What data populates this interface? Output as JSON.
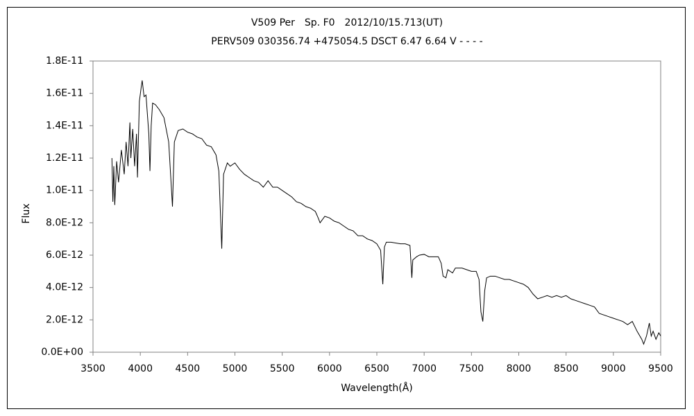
{
  "chart_data": {
    "type": "line",
    "title": "V509 Per　Sp. F0　2012/10/15.713(UT)",
    "subtitle": "PERV509 030356.74 +475054.5 DSCT 6.47 6.64 V - - - -",
    "x_label": "Wavelength(Å)",
    "y_label": "Flux",
    "color": "#000000",
    "xlim": [
      3500,
      9500
    ],
    "xticks": [
      3500,
      4000,
      4500,
      5000,
      5500,
      6000,
      6500,
      7000,
      7500,
      8000,
      8500,
      9000,
      9500
    ],
    "ylim": [
      0,
      1.8e-11
    ],
    "yticks": [
      {
        "value": 0,
        "label": "0.0E+00"
      },
      {
        "value": 2e-12,
        "label": "2.0E-12"
      },
      {
        "value": 4e-12,
        "label": "4.0E-12"
      },
      {
        "value": 6e-12,
        "label": "6.0E-12"
      },
      {
        "value": 8e-12,
        "label": "8.0E-12"
      },
      {
        "value": 1e-11,
        "label": "1.0E-11"
      },
      {
        "value": 1.2e-11,
        "label": "1.2E-11"
      },
      {
        "value": 1.4e-11,
        "label": "1.4E-11"
      },
      {
        "value": 1.6e-11,
        "label": "1.6E-11"
      },
      {
        "value": 1.8e-11,
        "label": "1.8E-11"
      }
    ],
    "x": [
      3700,
      3710,
      3720,
      3730,
      3750,
      3770,
      3800,
      3830,
      3850,
      3870,
      3890,
      3900,
      3920,
      3940,
      3960,
      3970,
      3990,
      4010,
      4020,
      4040,
      4060,
      4090,
      4102,
      4115,
      4130,
      4160,
      4200,
      4250,
      4300,
      4340,
      4360,
      4400,
      4450,
      4500,
      4550,
      4600,
      4650,
      4700,
      4750,
      4800,
      4830,
      4861,
      4880,
      4920,
      4950,
      5000,
      5050,
      5100,
      5150,
      5200,
      5250,
      5300,
      5350,
      5400,
      5450,
      5500,
      5550,
      5600,
      5650,
      5700,
      5750,
      5800,
      5850,
      5880,
      5900,
      5950,
      6000,
      6050,
      6100,
      6150,
      6200,
      6250,
      6300,
      6350,
      6400,
      6450,
      6500,
      6540,
      6563,
      6580,
      6600,
      6650,
      6700,
      6750,
      6800,
      6850,
      6870,
      6880,
      6920,
      6950,
      7000,
      7050,
      7100,
      7150,
      7180,
      7200,
      7230,
      7250,
      7300,
      7330,
      7400,
      7450,
      7500,
      7550,
      7580,
      7600,
      7620,
      7640,
      7660,
      7700,
      7750,
      7800,
      7850,
      7900,
      7950,
      8000,
      8050,
      8100,
      8150,
      8200,
      8250,
      8300,
      8350,
      8400,
      8450,
      8500,
      8550,
      8600,
      8650,
      8700,
      8750,
      8800,
      8850,
      8900,
      8950,
      9000,
      9050,
      9100,
      9150,
      9200,
      9250,
      9300,
      9320,
      9350,
      9380,
      9400,
      9420,
      9450,
      9480,
      9500
    ],
    "values": [
      1.2e-11,
      9.3e-12,
      1.15e-11,
      9.1e-12,
      1.18e-11,
      1.05e-11,
      1.25e-11,
      1.1e-11,
      1.3e-11,
      1.15e-11,
      1.42e-11,
      1.2e-11,
      1.38e-11,
      1.15e-11,
      1.35e-11,
      1.08e-11,
      1.55e-11,
      1.64e-11,
      1.68e-11,
      1.58e-11,
      1.59e-11,
      1.35e-11,
      1.12e-11,
      1.4e-11,
      1.54e-11,
      1.53e-11,
      1.5e-11,
      1.45e-11,
      1.3e-11,
      9e-12,
      1.3e-11,
      1.37e-11,
      1.38e-11,
      1.36e-11,
      1.35e-11,
      1.33e-11,
      1.32e-11,
      1.28e-11,
      1.27e-11,
      1.22e-11,
      1.12e-11,
      6.4e-12,
      1.1e-11,
      1.17e-11,
      1.15e-11,
      1.17e-11,
      1.13e-11,
      1.1e-11,
      1.08e-11,
      1.06e-11,
      1.05e-11,
      1.02e-11,
      1.06e-11,
      1.02e-11,
      1.02e-11,
      1e-11,
      9.8e-12,
      9.6e-12,
      9.3e-12,
      9.2e-12,
      9e-12,
      8.9e-12,
      8.7e-12,
      8.3e-12,
      8e-12,
      8.4e-12,
      8.3e-12,
      8.1e-12,
      8e-12,
      7.8e-12,
      7.6e-12,
      7.5e-12,
      7.2e-12,
      7.2e-12,
      7e-12,
      6.9e-12,
      6.7e-12,
      6.3e-12,
      4.2e-12,
      6.5e-12,
      6.8e-12,
      6.8e-12,
      6.75e-12,
      6.7e-12,
      6.7e-12,
      6.6e-12,
      4.6e-12,
      5.7e-12,
      5.9e-12,
      6e-12,
      6.05e-12,
      5.9e-12,
      5.9e-12,
      5.9e-12,
      5.5e-12,
      4.7e-12,
      4.6e-12,
      5.1e-12,
      4.9e-12,
      5.2e-12,
      5.2e-12,
      5.1e-12,
      5e-12,
      5e-12,
      4.5e-12,
      2.5e-12,
      1.9e-12,
      3.8e-12,
      4.6e-12,
      4.7e-12,
      4.7e-12,
      4.6e-12,
      4.5e-12,
      4.5e-12,
      4.4e-12,
      4.3e-12,
      4.2e-12,
      4e-12,
      3.6e-12,
      3.3e-12,
      3.4e-12,
      3.5e-12,
      3.4e-12,
      3.5e-12,
      3.4e-12,
      3.5e-12,
      3.3e-12,
      3.2e-12,
      3.1e-12,
      3e-12,
      2.9e-12,
      2.8e-12,
      2.4e-12,
      2.3e-12,
      2.2e-12,
      2.1e-12,
      2e-12,
      1.9e-12,
      1.7e-12,
      1.9e-12,
      1.3e-12,
      8e-13,
      5e-13,
      1e-12,
      1.8e-12,
      1e-12,
      1.3e-12,
      8e-13,
      1.2e-12,
      1e-12
    ]
  }
}
